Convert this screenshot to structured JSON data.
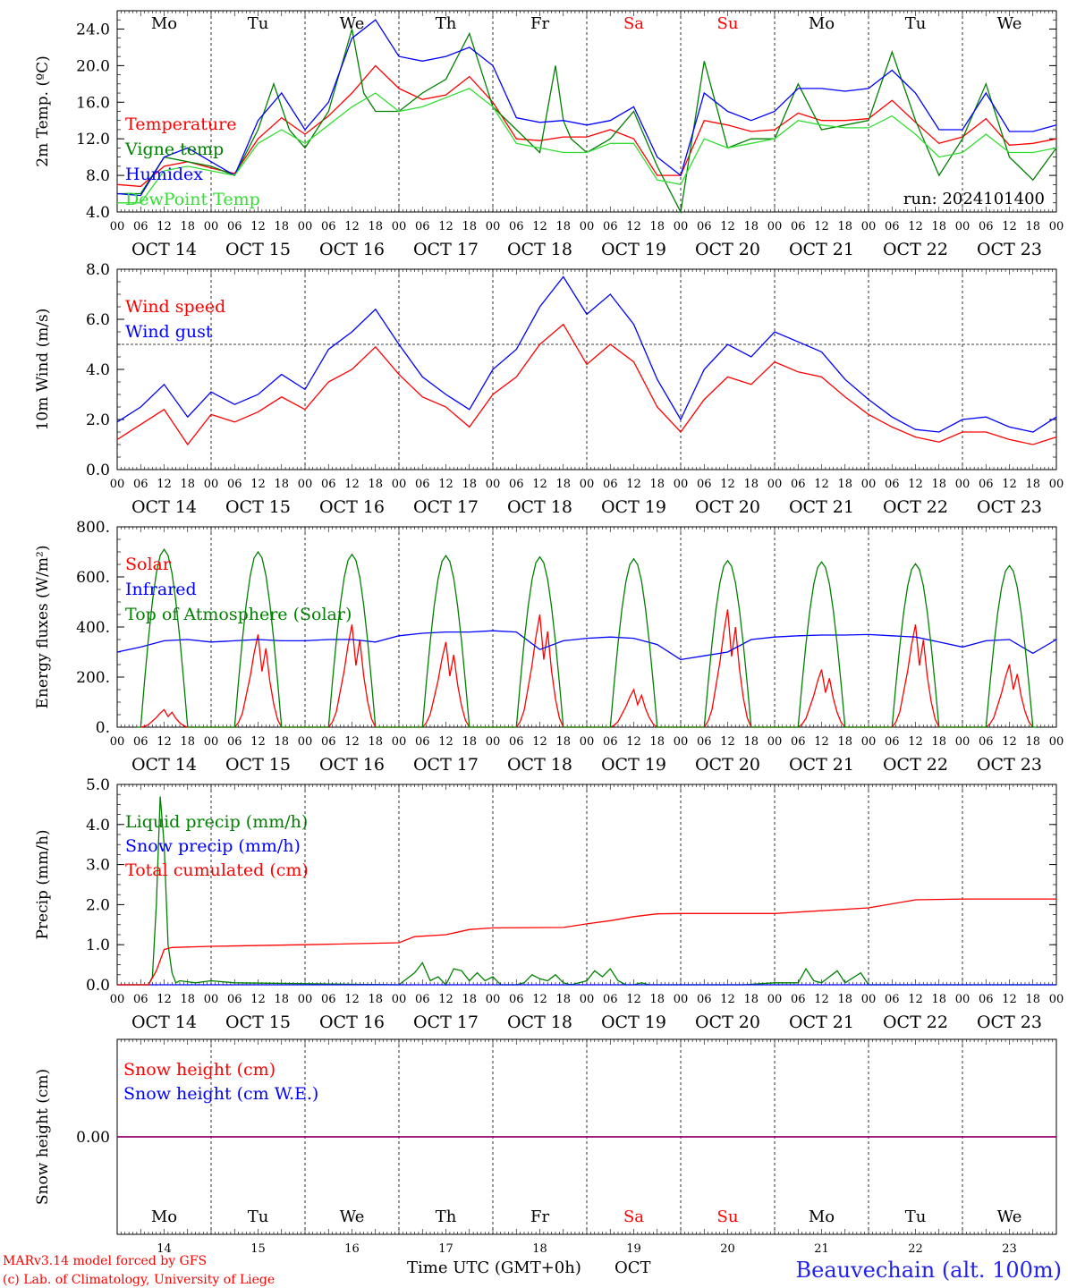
{
  "header": {
    "run_label": "run: 2024101400",
    "footer_model": "MARv3.14 model forced by GFS",
    "footer_lab": "(c) Lab. of Climatology, University of Liege",
    "xlabel": "Time UTC (GMT+0h)",
    "month": "OCT",
    "station": "Beauvechain (alt. 100m)"
  },
  "colors": {
    "red": "#ff0000",
    "green": "#008000",
    "blue": "#0000ff",
    "lightgreen": "#33dd33",
    "purple": "#800080",
    "weekend": "#ff0000",
    "weekday": "#000000"
  },
  "days": {
    "weekday_labels": [
      "Mo",
      "Tu",
      "We",
      "Th",
      "Fr",
      "Sa",
      "Su",
      "Mo",
      "Tu",
      "We"
    ],
    "weekend_flags": [
      false,
      false,
      false,
      false,
      false,
      true,
      true,
      false,
      false,
      false
    ],
    "date_labels": [
      "OCT 14",
      "OCT 15",
      "OCT 16",
      "OCT 17",
      "OCT 18",
      "OCT 19",
      "OCT 20",
      "OCT 21",
      "OCT 22",
      "OCT 23"
    ],
    "day_numbers": [
      "14",
      "15",
      "16",
      "17",
      "18",
      "19",
      "20",
      "21",
      "22",
      "23"
    ],
    "hour_ticks": [
      "00",
      "06",
      "12",
      "18"
    ],
    "final_tick": "00"
  },
  "chart_data": [
    {
      "id": "temp",
      "type": "line",
      "ylabel": "2m Temp. (ºC)",
      "ylim": [
        4,
        26
      ],
      "yticks": [
        4,
        8,
        12,
        16,
        20,
        24
      ],
      "ytick_labels": [
        "4.0",
        "8.0",
        "12.0",
        "16.0",
        "20.0",
        "24.0"
      ],
      "x_unit": "hours since OCT 14 00 UTC",
      "series": [
        {
          "name": "Temperature",
          "color": "red",
          "x": [
            0,
            6,
            12,
            18,
            24,
            30,
            36,
            42,
            48,
            54,
            60,
            66,
            72,
            78,
            84,
            90,
            96,
            102,
            108,
            114,
            120,
            126,
            132,
            138,
            144,
            150,
            156,
            162,
            168,
            174,
            180,
            186,
            192,
            198,
            204,
            210,
            216,
            222,
            228,
            234,
            240
          ],
          "y": [
            7,
            6.8,
            9,
            9.5,
            8.8,
            8.2,
            12,
            14.3,
            12.5,
            14.5,
            17,
            20,
            17.5,
            16.3,
            16.8,
            18.8,
            16,
            12,
            11.8,
            12.2,
            12.2,
            13,
            12,
            8,
            8,
            14,
            13.5,
            12.8,
            13,
            14.8,
            14,
            14,
            14.2,
            16.2,
            13.8,
            11.5,
            12.2,
            14.2,
            11.3,
            11.5,
            12
          ]
        },
        {
          "name": "Vigne temp",
          "color": "green",
          "x": [
            0,
            6,
            12,
            18,
            24,
            30,
            36,
            40,
            44,
            48,
            54,
            60,
            63,
            66,
            72,
            78,
            84,
            90,
            96,
            102,
            108,
            112,
            114,
            116,
            120,
            126,
            132,
            138,
            144,
            150,
            156,
            162,
            168,
            174,
            180,
            186,
            192,
            198,
            204,
            210,
            216,
            222,
            228,
            234,
            240
          ],
          "y": [
            6,
            6,
            10,
            9.5,
            9,
            8,
            13,
            18,
            13,
            11,
            15,
            24,
            17,
            15,
            15,
            17,
            18.5,
            23.5,
            15.5,
            13,
            10.5,
            20,
            14,
            12,
            10.5,
            12,
            15,
            9,
            4,
            20.5,
            11,
            12,
            12,
            18,
            13,
            13.5,
            14,
            21.5,
            14,
            8,
            12,
            18,
            10,
            7.5,
            11
          ]
        },
        {
          "name": "Humidex",
          "color": "blue",
          "x": [
            0,
            6,
            12,
            18,
            24,
            30,
            36,
            42,
            48,
            54,
            60,
            66,
            72,
            78,
            84,
            90,
            96,
            102,
            108,
            114,
            120,
            126,
            132,
            138,
            144,
            150,
            156,
            162,
            168,
            174,
            180,
            186,
            192,
            198,
            204,
            210,
            216,
            222,
            228,
            234,
            240
          ],
          "y": [
            6,
            5.8,
            10,
            11,
            9.5,
            8,
            14,
            17,
            13,
            16,
            23,
            25,
            21,
            20.5,
            21,
            22,
            20,
            14.3,
            13.8,
            14,
            13.5,
            14,
            15.5,
            10,
            8,
            17,
            15,
            14,
            15,
            17.5,
            17.5,
            17.2,
            17.5,
            19.5,
            17,
            13,
            13,
            17,
            12.8,
            12.8,
            13.5
          ]
        },
        {
          "name": "DewPoint Temp",
          "color": "lightgreen",
          "x": [
            0,
            6,
            12,
            18,
            24,
            30,
            36,
            42,
            48,
            54,
            60,
            66,
            72,
            78,
            84,
            90,
            96,
            102,
            108,
            114,
            120,
            126,
            132,
            138,
            144,
            150,
            156,
            162,
            168,
            174,
            180,
            186,
            192,
            198,
            204,
            210,
            216,
            222,
            228,
            234,
            240
          ],
          "y": [
            5,
            5,
            8.5,
            9,
            8.5,
            8,
            11.5,
            13,
            11.5,
            13.5,
            15.5,
            17,
            15,
            15.5,
            16.5,
            17.5,
            15.5,
            11.5,
            11,
            10.5,
            10.5,
            11.5,
            11.5,
            7.5,
            7,
            12,
            11,
            11.5,
            12,
            14,
            13.5,
            13.2,
            13.2,
            14.5,
            12.5,
            10,
            10.5,
            12.5,
            10.5,
            10.5,
            11
          ]
        }
      ]
    },
    {
      "id": "wind",
      "type": "line",
      "ylabel": "10m Wind (m/s)",
      "ylim": [
        0,
        8
      ],
      "yticks": [
        0,
        2,
        4,
        6,
        8
      ],
      "ytick_labels": [
        "0.0",
        "2.0",
        "4.0",
        "6.0",
        "8.0"
      ],
      "hline": 5,
      "series": [
        {
          "name": "Wind speed",
          "color": "red",
          "x": [
            0,
            6,
            12,
            18,
            24,
            30,
            36,
            42,
            48,
            54,
            60,
            66,
            72,
            78,
            84,
            90,
            96,
            102,
            108,
            114,
            120,
            126,
            132,
            138,
            144,
            150,
            156,
            162,
            168,
            174,
            180,
            186,
            192,
            198,
            204,
            210,
            216,
            222,
            228,
            234,
            240
          ],
          "y": [
            1.2,
            1.8,
            2.4,
            1,
            2.2,
            1.9,
            2.3,
            2.9,
            2.4,
            3.5,
            4,
            4.9,
            3.8,
            2.9,
            2.5,
            1.7,
            3,
            3.7,
            5,
            5.8,
            4.2,
            5,
            4.3,
            2.5,
            1.5,
            2.8,
            3.7,
            3.4,
            4.3,
            3.9,
            3.7,
            2.9,
            2.2,
            1.7,
            1.3,
            1.1,
            1.5,
            1.5,
            1.2,
            1,
            1.3
          ]
        },
        {
          "name": "Wind gust",
          "color": "blue",
          "x": [
            0,
            6,
            12,
            18,
            24,
            30,
            36,
            42,
            48,
            54,
            60,
            66,
            72,
            78,
            84,
            90,
            96,
            102,
            108,
            114,
            120,
            126,
            132,
            138,
            144,
            150,
            156,
            162,
            168,
            174,
            180,
            186,
            192,
            198,
            204,
            210,
            216,
            222,
            228,
            234,
            240
          ],
          "y": [
            1.9,
            2.5,
            3.4,
            2.1,
            3.1,
            2.6,
            3,
            3.8,
            3.2,
            4.8,
            5.5,
            6.4,
            5,
            3.7,
            3,
            2.4,
            4,
            4.8,
            6.5,
            7.7,
            6.2,
            7,
            5.8,
            3.6,
            2,
            4,
            5,
            4.5,
            5.5,
            5.1,
            4.7,
            3.6,
            2.8,
            2.1,
            1.6,
            1.5,
            2,
            2.1,
            1.7,
            1.5,
            2.1
          ]
        }
      ]
    },
    {
      "id": "flux",
      "type": "line",
      "ylabel": "Energy fluxes (W/m²)",
      "ylim": [
        0,
        800
      ],
      "yticks": [
        0,
        200,
        400,
        600,
        800
      ],
      "ytick_labels": [
        "0.",
        "200.",
        "400.",
        "600.",
        "800."
      ],
      "series": [
        {
          "name": "Solar",
          "color": "red",
          "daily_peak": [
            70,
            370,
            410,
            340,
            450,
            150,
            470,
            230,
            410,
            250
          ]
        },
        {
          "name": "Infrared",
          "color": "blue",
          "x": [
            0,
            6,
            12,
            18,
            24,
            30,
            36,
            42,
            48,
            54,
            60,
            66,
            72,
            78,
            84,
            90,
            96,
            102,
            108,
            114,
            120,
            126,
            132,
            138,
            144,
            150,
            156,
            162,
            168,
            174,
            180,
            186,
            192,
            198,
            204,
            210,
            216,
            222,
            228,
            234,
            240
          ],
          "y": [
            300,
            320,
            345,
            350,
            340,
            345,
            350,
            345,
            345,
            350,
            350,
            340,
            365,
            375,
            380,
            380,
            385,
            380,
            310,
            345,
            355,
            360,
            355,
            330,
            270,
            285,
            300,
            350,
            360,
            365,
            368,
            368,
            370,
            365,
            360,
            340,
            320,
            345,
            350,
            295,
            350
          ]
        },
        {
          "name": "Top of Atmosphere (Solar)",
          "color": "green",
          "daily_peak": [
            710,
            700,
            690,
            685,
            680,
            672,
            665,
            660,
            652,
            645
          ]
        }
      ]
    },
    {
      "id": "precip",
      "type": "line",
      "ylabel": "Precip (mm/h)",
      "ylim": [
        0,
        5
      ],
      "yticks": [
        0,
        1,
        2,
        3,
        4,
        5
      ],
      "ytick_labels": [
        "0.0",
        "1.0",
        "2.0",
        "3.0",
        "4.0",
        "5.0"
      ],
      "series": [
        {
          "name": "Liquid precip (mm/h)",
          "color": "green",
          "x": [
            0,
            8,
            9,
            10,
            11,
            12,
            13,
            14,
            15,
            16,
            20,
            24,
            30,
            72,
            76,
            78,
            80,
            82,
            84,
            86,
            88,
            90,
            92,
            94,
            96,
            98,
            100,
            102,
            104,
            106,
            108,
            110,
            112,
            114,
            116,
            118,
            120,
            122,
            124,
            126,
            128,
            130,
            132,
            134,
            136,
            138,
            140,
            160,
            168,
            174,
            176,
            178,
            180,
            182,
            184,
            186,
            190,
            192,
            196,
            200,
            240
          ],
          "y": [
            0,
            0,
            0.2,
            2,
            4.7,
            3.5,
            1,
            0.3,
            0.05,
            0.1,
            0.05,
            0.1,
            0.05,
            0,
            0.3,
            0.55,
            0.1,
            0.2,
            0,
            0.4,
            0.35,
            0.1,
            0.3,
            0.1,
            0.2,
            0,
            0,
            0,
            0.05,
            0.25,
            0.15,
            0.1,
            0.25,
            0.05,
            0,
            0.05,
            0.1,
            0.35,
            0.2,
            0.4,
            0.1,
            0,
            0,
            0.05,
            0,
            0,
            0,
            0,
            0.05,
            0.05,
            0.4,
            0.1,
            0.05,
            0.2,
            0.35,
            0.05,
            0.3,
            0,
            0,
            0,
            0
          ]
        },
        {
          "name": "Snow precip (mm/h)",
          "color": "blue",
          "x": [
            0,
            240
          ],
          "y": [
            0,
            0
          ]
        },
        {
          "name": "Total cumulated (cm)",
          "color": "red",
          "x": [
            0,
            8,
            10,
            12,
            14,
            24,
            48,
            72,
            76,
            84,
            90,
            96,
            114,
            120,
            126,
            132,
            138,
            144,
            168,
            192,
            204,
            216,
            240
          ],
          "y": [
            0,
            0,
            0.35,
            0.88,
            0.93,
            0.96,
            1,
            1.05,
            1.2,
            1.25,
            1.38,
            1.42,
            1.43,
            1.52,
            1.6,
            1.7,
            1.77,
            1.78,
            1.78,
            1.92,
            2.12,
            2.14,
            2.14
          ]
        }
      ]
    },
    {
      "id": "snow",
      "type": "line",
      "ylabel": "Snow height (cm)",
      "ylim": [
        -1,
        1
      ],
      "yticks": [
        0
      ],
      "ytick_labels": [
        "0.00"
      ],
      "series": [
        {
          "name": "Snow height (cm)",
          "color": "red",
          "x": [
            0,
            240
          ],
          "y": [
            0,
            0
          ]
        },
        {
          "name": "Snow height (cm W.E.)",
          "color": "blue",
          "x": [
            0,
            240
          ],
          "y": [
            0,
            0
          ]
        }
      ]
    }
  ]
}
